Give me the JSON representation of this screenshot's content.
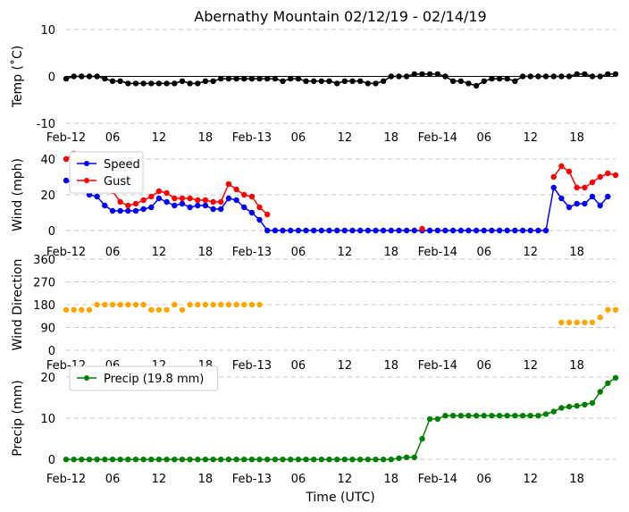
{
  "chart_data": [
    {
      "type": "line",
      "title": "Abernathy Mountain 02/12/19 - 02/14/19",
      "ylabel": "Temp (˚C)",
      "ylim": [
        -10,
        10
      ],
      "yticks": [
        -10,
        0,
        10
      ],
      "zero_line": true,
      "series": [
        {
          "name": "Temp",
          "color": "#000000",
          "values": [
            -0.5,
            0,
            0,
            0,
            0,
            -0.5,
            -1,
            -1,
            -1.5,
            -1.5,
            -1.5,
            -1.5,
            -1.5,
            -1.5,
            -1.5,
            -1,
            -1.5,
            -1.5,
            -1,
            -1,
            -0.5,
            -0.5,
            -0.5,
            -0.5,
            -0.5,
            -0.5,
            -0.5,
            -0.5,
            -1,
            -0.5,
            -0.5,
            -1,
            -1,
            -1,
            -1,
            -1.5,
            -1,
            -1,
            -1,
            -1.5,
            -1.5,
            -1,
            0,
            0,
            0,
            0.5,
            0.5,
            0.5,
            0.5,
            0,
            -1,
            -1,
            -1.5,
            -2,
            -1,
            -0.5,
            -0.5,
            -0.5,
            -1,
            0,
            0,
            0,
            0,
            0,
            0,
            0,
            0.5,
            0.5,
            0,
            0,
            0.5,
            0.5
          ]
        }
      ]
    },
    {
      "type": "line",
      "ylabel": "Wind (mph)",
      "ylim": [
        -5,
        45
      ],
      "yticks": [
        0,
        20,
        40
      ],
      "legend": "top-left",
      "series": [
        {
          "name": "Speed",
          "color": "#0000ff",
          "values": [
            28,
            26,
            27,
            20,
            19,
            14,
            11,
            11,
            11,
            11,
            12,
            13,
            18,
            16,
            14,
            15,
            13,
            14,
            14,
            12,
            12,
            18,
            17,
            13,
            10,
            6,
            0,
            0,
            0,
            0,
            0,
            0,
            0,
            0,
            0,
            0,
            0,
            0,
            0,
            0,
            0,
            0,
            0,
            0,
            0,
            0,
            0,
            0,
            0,
            0,
            0,
            0,
            0,
            0,
            0,
            0,
            0,
            0,
            0,
            0,
            0,
            0,
            0,
            24,
            18,
            13,
            15,
            15,
            19,
            14,
            19
          ]
        },
        {
          "name": "Gust",
          "color": "#ff0000",
          "segments": [
            {
              "start": 0,
              "values": [
                40,
                43,
                42,
                37,
                30,
                27,
                22,
                16,
                14,
                15,
                17,
                19,
                22,
                21,
                18,
                18,
                18,
                17,
                17,
                16,
                16,
                26,
                23,
                20,
                19,
                13,
                9
              ]
            },
            {
              "start": 46,
              "values": [
                1
              ]
            },
            {
              "start": 63,
              "values": [
                30,
                36,
                33,
                24,
                24,
                27,
                30,
                32,
                31
              ]
            }
          ]
        }
      ]
    },
    {
      "type": "scatter",
      "ylabel": "Wind Direction",
      "ylim": [
        0,
        360
      ],
      "yticks": [
        0,
        90,
        180,
        270,
        360
      ],
      "series": [
        {
          "name": "Direction",
          "color": "#ffa500",
          "segments": [
            {
              "start": 0,
              "values": [
                160,
                160,
                160,
                160,
                180,
                180,
                180,
                180,
                180,
                180,
                180,
                160,
                160,
                160,
                180,
                160,
                180,
                180,
                180,
                180,
                180,
                180,
                180,
                180,
                180,
                180
              ]
            },
            {
              "start": 64,
              "values": [
                110,
                110,
                110,
                110,
                110,
                130,
                160,
                160
              ]
            }
          ]
        }
      ]
    },
    {
      "type": "line",
      "ylabel": "Precip (mm)",
      "xlabel": "Time (UTC)",
      "ylim": [
        -3,
        23
      ],
      "yticks": [
        0,
        10,
        20
      ],
      "legend": "top-left",
      "series": [
        {
          "name": "Precip (19.8 mm)",
          "color": "#008000",
          "values": [
            0,
            0,
            0,
            0,
            0,
            0,
            0,
            0,
            0,
            0,
            0,
            0,
            0,
            0,
            0,
            0,
            0,
            0,
            0,
            0,
            0,
            0,
            0,
            0,
            0,
            0,
            0,
            0,
            0,
            0,
            0,
            0,
            0,
            0,
            0,
            0,
            0,
            0,
            0,
            0,
            0,
            0,
            0,
            0.3,
            0.5,
            0.5,
            5,
            9.8,
            9.8,
            10.6,
            10.6,
            10.6,
            10.6,
            10.6,
            10.6,
            10.6,
            10.6,
            10.6,
            10.6,
            10.6,
            10.6,
            10.6,
            11,
            11.6,
            12.5,
            12.8,
            13,
            13.3,
            13.7,
            16.4,
            18.5,
            19.8
          ]
        }
      ]
    }
  ],
  "x_axis": {
    "points": 72,
    "tick_labels": [
      {
        "index": 0,
        "label": "Feb-12"
      },
      {
        "index": 6,
        "label": "06"
      },
      {
        "index": 12,
        "label": "12"
      },
      {
        "index": 18,
        "label": "18"
      },
      {
        "index": 24,
        "label": "Feb-13"
      },
      {
        "index": 30,
        "label": "06"
      },
      {
        "index": 36,
        "label": "12"
      },
      {
        "index": 42,
        "label": "18"
      },
      {
        "index": 48,
        "label": "Feb-14"
      },
      {
        "index": 54,
        "label": "06"
      },
      {
        "index": 60,
        "label": "12"
      },
      {
        "index": 66,
        "label": "18"
      }
    ]
  }
}
